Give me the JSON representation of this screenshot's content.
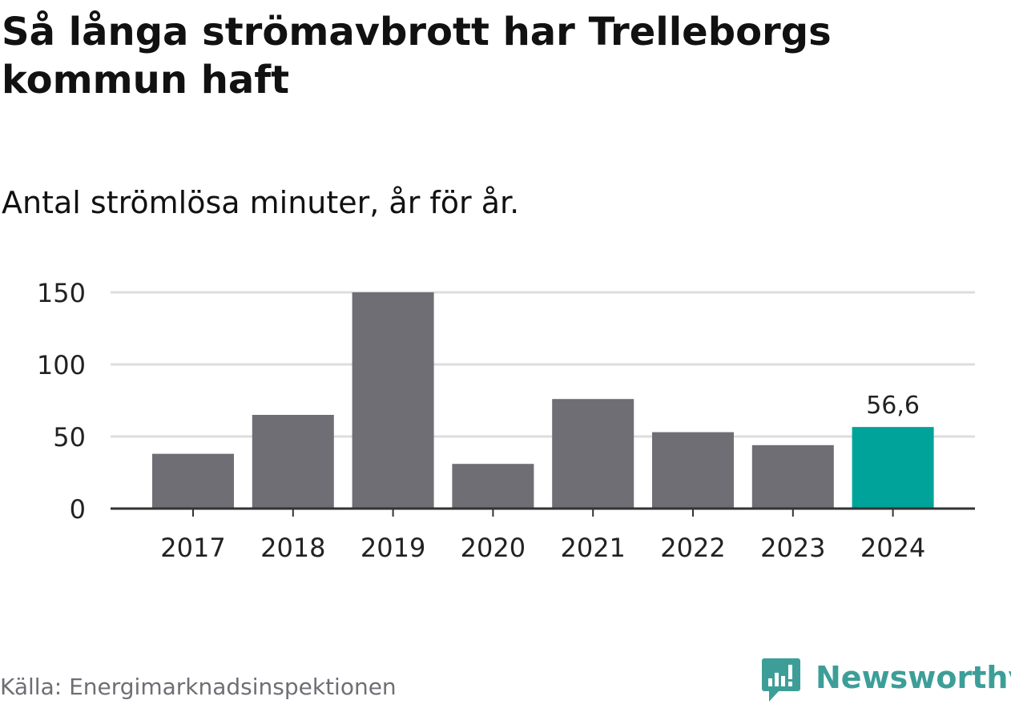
{
  "title": "Så långa strömavbrott har Trelleborgs kommun haft",
  "subtitle": "Antal strömlösa minuter, år för år.",
  "source": "Källa: Energimarknadsinspektionen",
  "brand": {
    "name": "Newsworthy",
    "icon": "newsworthy-logo-icon",
    "color": "#3d9e98"
  },
  "colors": {
    "bar": "#6f6e74",
    "highlight": "#00a39a",
    "grid": "#dddddd",
    "axis": "#333333"
  },
  "chart_data": {
    "type": "bar",
    "title": "Så långa strömavbrott har Trelleborgs kommun haft",
    "subtitle": "Antal strömlösa minuter, år för år.",
    "xlabel": "",
    "ylabel": "",
    "categories": [
      "2017",
      "2018",
      "2019",
      "2020",
      "2021",
      "2022",
      "2023",
      "2024"
    ],
    "values": [
      38,
      65,
      150,
      31,
      76,
      53,
      44,
      56.6
    ],
    "highlight_index": 7,
    "data_labels": [
      {
        "index": 7,
        "text": "56,6"
      }
    ],
    "yticks": [
      0,
      50,
      100,
      150
    ],
    "ylim": [
      0,
      150
    ],
    "grid": true,
    "legend": "none"
  }
}
